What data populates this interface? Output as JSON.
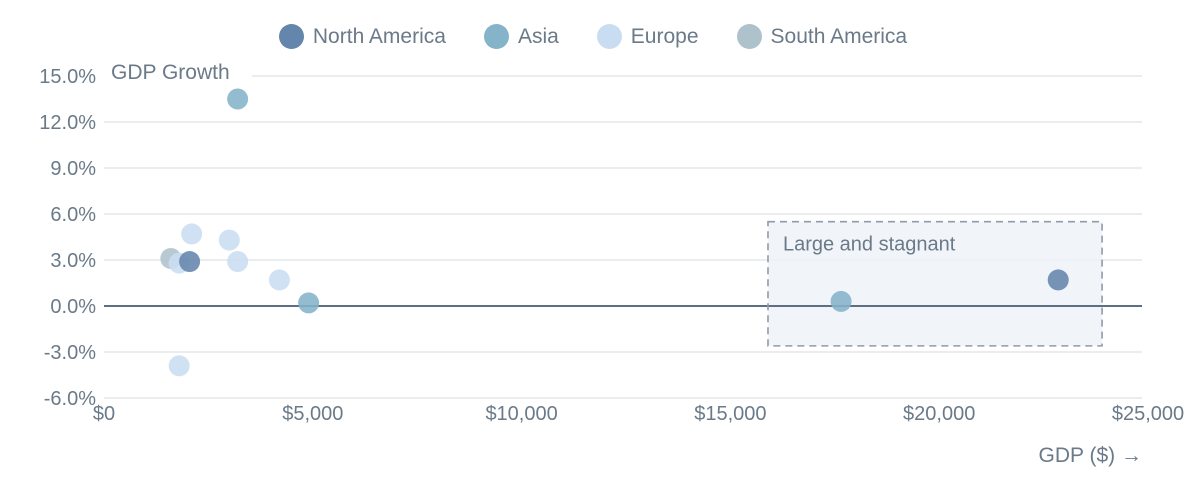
{
  "colors": {
    "north_america": "#6485AC",
    "asia": "#85B3CA",
    "europe": "#C9DDF2",
    "south_america": "#AEC2CC",
    "grid": "#E4E7EC",
    "zero_line": "#5F6E80",
    "text": "#6B7A89",
    "annotation_fill": "#EEF3F8",
    "annotation_border": "#8E9BAB"
  },
  "legend": {
    "items": [
      {
        "label": "North America",
        "key": "north_america"
      },
      {
        "label": "Asia",
        "key": "asia"
      },
      {
        "label": "Europe",
        "key": "europe"
      },
      {
        "label": "South America",
        "key": "south_america"
      }
    ]
  },
  "chart_data": {
    "type": "scatter",
    "title": "GDP Growth",
    "xlabel": "GDP ($) →",
    "x_ticks": {
      "values": [
        0,
        5000,
        10000,
        15000,
        20000,
        25000
      ],
      "labels": [
        "$0",
        "$5,000",
        "$10,000",
        "$15,000",
        "$20,000",
        "$25,000"
      ]
    },
    "y_ticks": {
      "values": [
        15,
        12,
        9,
        6,
        3,
        0,
        -3,
        -6
      ],
      "labels": [
        "15.0%",
        "12.0%",
        "9.0%",
        "6.0%",
        "3.0%",
        "0.0%",
        "-3.0%",
        "-6.0%"
      ]
    },
    "xlim": [
      0,
      25000
    ],
    "ylim": [
      -6,
      15
    ],
    "grid": true,
    "legend_position": "top",
    "series": [
      {
        "name": "South America",
        "key": "south_america",
        "points": [
          {
            "x": 1600,
            "y": 3.1
          }
        ]
      },
      {
        "name": "Europe",
        "key": "europe",
        "points": [
          {
            "x": 1800,
            "y": 2.8
          },
          {
            "x": 2100,
            "y": 4.7
          },
          {
            "x": 3000,
            "y": 4.3
          },
          {
            "x": 3200,
            "y": 2.9
          },
          {
            "x": 4200,
            "y": 1.7
          },
          {
            "x": 1800,
            "y": -3.9
          }
        ]
      },
      {
        "name": "North America",
        "key": "north_america",
        "points": [
          {
            "x": 2050,
            "y": 2.9
          },
          {
            "x": 22850,
            "y": 1.7
          }
        ]
      },
      {
        "name": "Asia",
        "key": "asia",
        "points": [
          {
            "x": 3200,
            "y": 13.5
          },
          {
            "x": 4900,
            "y": 0.2
          },
          {
            "x": 17650,
            "y": 0.3
          }
        ]
      }
    ],
    "annotation": {
      "label": "Large and stagnant",
      "x_range": [
        15900,
        23900
      ],
      "y_range": [
        -2.6,
        5.5
      ]
    }
  }
}
